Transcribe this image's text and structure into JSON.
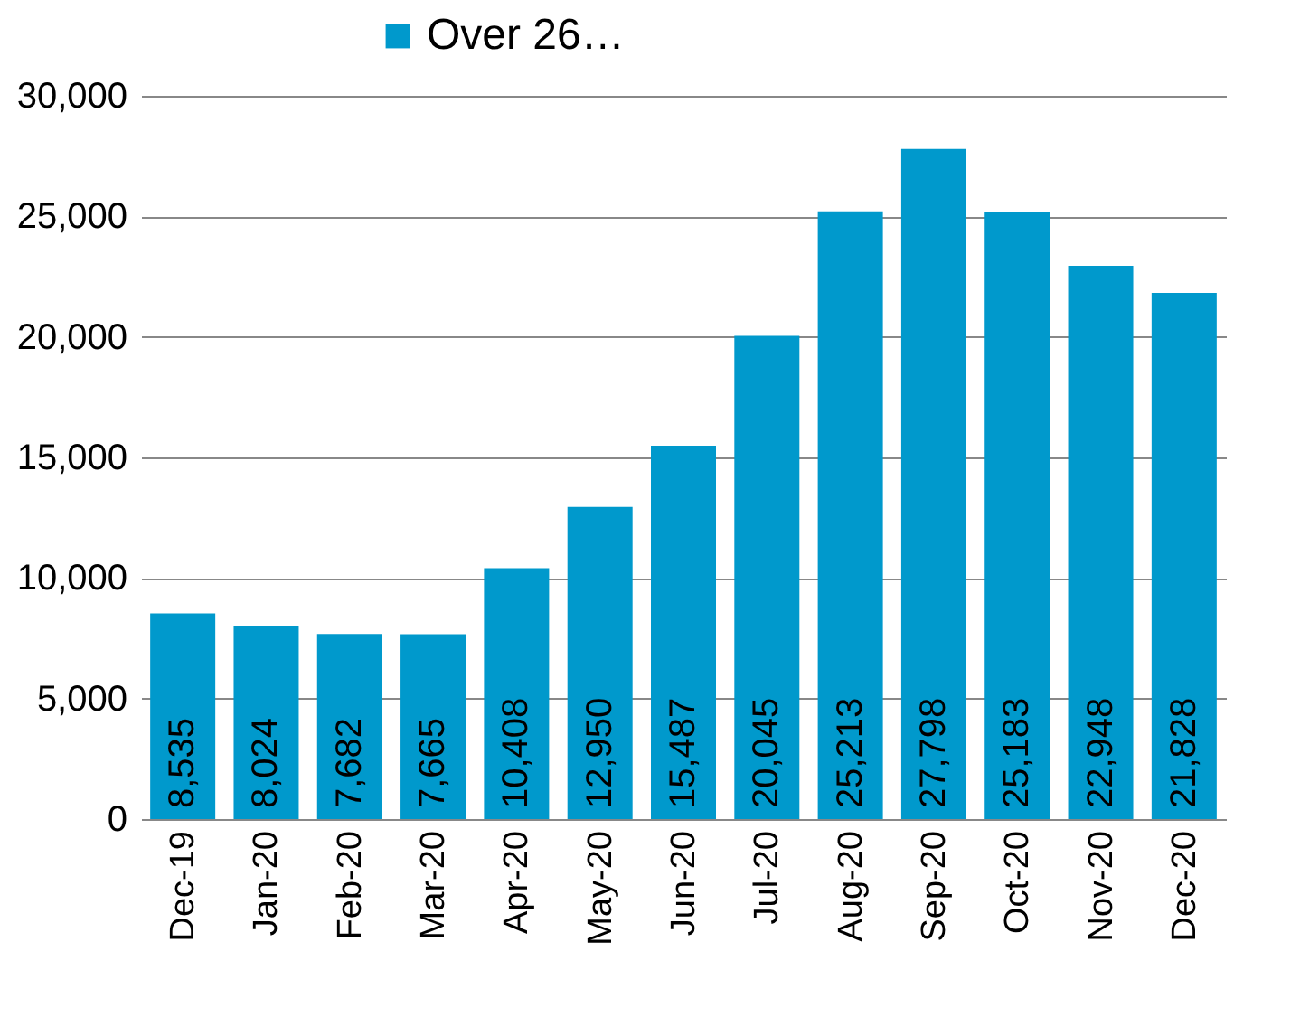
{
  "chart_data": {
    "type": "bar",
    "categories": [
      "Dec-19",
      "Jan-20",
      "Feb-20",
      "Mar-20",
      "Apr-20",
      "May-20",
      "Jun-20",
      "Jul-20",
      "Aug-20",
      "Sep-20",
      "Oct-20",
      "Nov-20",
      "Dec-20"
    ],
    "series": [
      {
        "name": "Over 26…",
        "color": "#0099cc",
        "values": [
          8535,
          8024,
          7682,
          7665,
          10408,
          12950,
          15487,
          20045,
          25213,
          27798,
          25183,
          22948,
          21828
        ],
        "value_labels": [
          "8,535",
          "8,024",
          "7,682",
          "7,665",
          "10,408",
          "12,950",
          "15,487",
          "20,045",
          "25,213",
          "27,798",
          "25,183",
          "22,948",
          "21,828"
        ]
      }
    ],
    "ylim": [
      0,
      30000
    ],
    "yticks": [
      {
        "value": 0,
        "label": "0"
      },
      {
        "value": 5000,
        "label": "5,000"
      },
      {
        "value": 10000,
        "label": "10,000"
      },
      {
        "value": 15000,
        "label": "15,000"
      },
      {
        "value": 20000,
        "label": "20,000"
      },
      {
        "value": 25000,
        "label": "25,000"
      },
      {
        "value": 30000,
        "label": "30,000"
      }
    ],
    "grid": "y",
    "legend": "top"
  }
}
